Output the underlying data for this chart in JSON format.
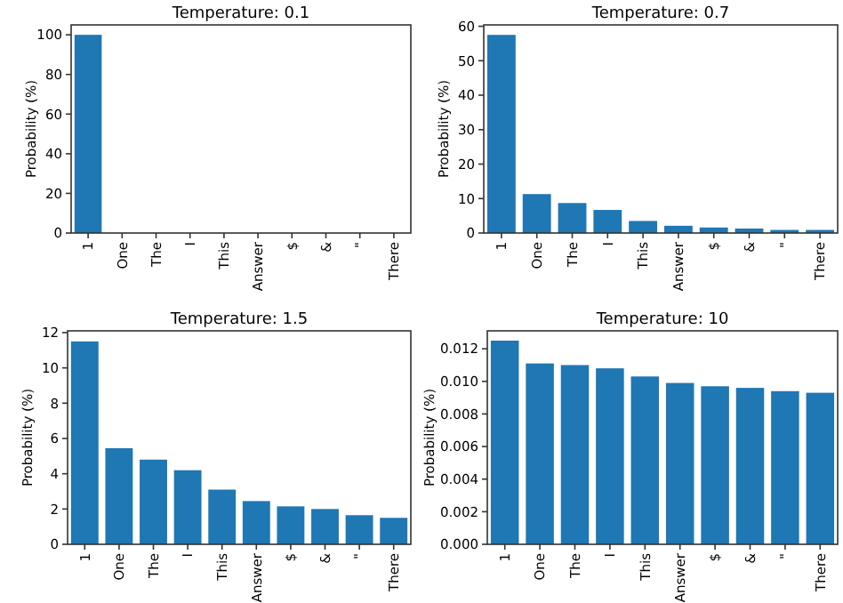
{
  "chart_data": [
    {
      "type": "bar",
      "title": "Temperature: 0.1",
      "ylabel": "Probability (%)",
      "categories": [
        "1",
        "One",
        "The",
        "I",
        "This",
        "Answer",
        "$",
        "&",
        "\"",
        "There"
      ],
      "values": [
        100,
        0,
        0,
        0,
        0,
        0,
        0,
        0,
        0,
        0
      ],
      "color": "#1f77b4",
      "ylim": [
        0,
        105
      ],
      "yticks": [
        0,
        20,
        40,
        60,
        80,
        100
      ],
      "grid": false
    },
    {
      "type": "bar",
      "title": "Temperature: 0.7",
      "ylabel": "Probability (%)",
      "categories": [
        "1",
        "One",
        "The",
        "I",
        "This",
        "Answer",
        "$",
        "&",
        "\"",
        "There"
      ],
      "values": [
        57.5,
        11.3,
        8.7,
        6.7,
        3.5,
        2.1,
        1.6,
        1.3,
        0.9,
        0.9
      ],
      "color": "#1f77b4",
      "ylim": [
        0,
        60.4
      ],
      "yticks": [
        0,
        10,
        20,
        30,
        40,
        50,
        60
      ],
      "grid": false
    },
    {
      "type": "bar",
      "title": "Temperature: 1.5",
      "ylabel": "Probability (%)",
      "categories": [
        "1",
        "One",
        "The",
        "I",
        "This",
        "Answer",
        "$",
        "&",
        "\"",
        "There"
      ],
      "values": [
        11.5,
        5.45,
        4.8,
        4.2,
        3.1,
        2.45,
        2.15,
        2.0,
        1.65,
        1.5
      ],
      "color": "#1f77b4",
      "ylim": [
        0,
        12.1
      ],
      "yticks": [
        0,
        2,
        4,
        6,
        8,
        10,
        12
      ],
      "grid": false
    },
    {
      "type": "bar",
      "title": "Temperature: 10",
      "ylabel": "Probability (%)",
      "categories": [
        "1",
        "One",
        "The",
        "I",
        "This",
        "Answer",
        "$",
        "&",
        "\"",
        "There"
      ],
      "values": [
        0.0125,
        0.0111,
        0.011,
        0.0108,
        0.0103,
        0.0099,
        0.0097,
        0.0096,
        0.0094,
        0.0093
      ],
      "color": "#1f77b4",
      "ylim": [
        0,
        0.0131
      ],
      "yticks": [
        {
          "value": 0,
          "label": "0.000"
        },
        {
          "value": 0.002,
          "label": "0.002"
        },
        {
          "value": 0.004,
          "label": "0.004"
        },
        {
          "value": 0.006,
          "label": "0.006"
        },
        {
          "value": 0.008,
          "label": "0.008"
        },
        {
          "value": 0.01,
          "label": "0.010"
        },
        {
          "value": 0.012,
          "label": "0.012"
        }
      ],
      "grid": false
    }
  ]
}
